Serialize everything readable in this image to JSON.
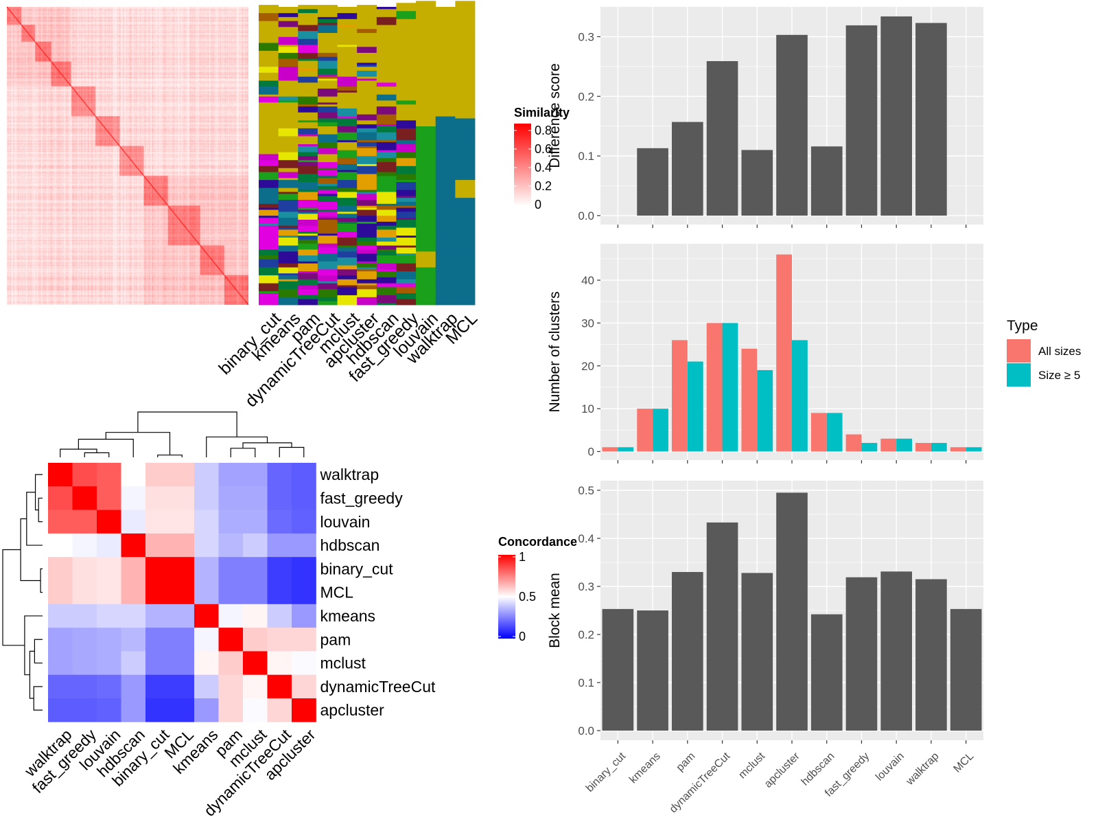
{
  "methods": [
    "binary_cut",
    "kmeans",
    "pam",
    "dynamicTreeCut",
    "mclust",
    "apcluster",
    "hdbscan",
    "fast_greedy",
    "louvain",
    "walktrap",
    "MCL"
  ],
  "chart_data": [
    {
      "id": "similarity_heatmap",
      "type": "heatmap",
      "legend": {
        "title": "Similarity",
        "ticks": [
          "0",
          "0.2",
          "0.4",
          "0.6",
          "0.8"
        ],
        "low_color": "#ffffff",
        "high_color": "#ff0000"
      },
      "n_items": 300
    },
    {
      "id": "cluster_assignment_heatmap",
      "type": "heatmap",
      "columns": [
        "binary_cut",
        "kmeans",
        "pam",
        "dynamicTreeCut",
        "mclust",
        "apcluster",
        "hdbscan",
        "fast_greedy",
        "louvain",
        "walktrap",
        "MCL"
      ],
      "background_color": "#c5ae00",
      "palette": [
        "#2e0a99",
        "#1aa01a",
        "#e000e0",
        "#1a8fa0",
        "#a65d00",
        "#7a1f1f",
        "#0d6e8c",
        "#c800c8",
        "#2a7a00",
        "#e39e00",
        "#1f3fa0",
        "#007a3a",
        "#7b0a7b",
        "#e6e600"
      ]
    },
    {
      "id": "concordance_heatmap",
      "type": "heatmap",
      "rows": [
        "walktrap",
        "fast_greedy",
        "louvain",
        "hdbscan",
        "binary_cut",
        "MCL",
        "kmeans",
        "pam",
        "mclust",
        "dynamicTreeCut",
        "apcluster"
      ],
      "columns": [
        "walktrap",
        "fast_greedy",
        "louvain",
        "hdbscan",
        "binary_cut",
        "MCL",
        "kmeans",
        "pam",
        "mclust",
        "dynamicTreeCut",
        "apcluster"
      ],
      "values": [
        [
          1.0,
          0.85,
          0.82,
          0.5,
          0.6,
          0.6,
          0.4,
          0.32,
          0.32,
          0.2,
          0.18
        ],
        [
          0.85,
          1.0,
          0.82,
          0.48,
          0.56,
          0.56,
          0.4,
          0.33,
          0.33,
          0.2,
          0.18
        ],
        [
          0.82,
          0.82,
          1.0,
          0.46,
          0.55,
          0.55,
          0.42,
          0.34,
          0.34,
          0.21,
          0.19
        ],
        [
          0.5,
          0.48,
          0.46,
          1.0,
          0.65,
          0.65,
          0.42,
          0.36,
          0.4,
          0.3,
          0.3
        ],
        [
          0.6,
          0.56,
          0.55,
          0.65,
          1.0,
          1.0,
          0.35,
          0.25,
          0.25,
          0.12,
          0.1
        ],
        [
          0.6,
          0.56,
          0.55,
          0.65,
          1.0,
          1.0,
          0.35,
          0.25,
          0.25,
          0.12,
          0.1
        ],
        [
          0.4,
          0.4,
          0.42,
          0.42,
          0.35,
          0.35,
          1.0,
          0.48,
          0.52,
          0.4,
          0.3
        ],
        [
          0.32,
          0.33,
          0.34,
          0.36,
          0.25,
          0.25,
          0.48,
          1.0,
          0.6,
          0.58,
          0.58
        ],
        [
          0.32,
          0.33,
          0.34,
          0.4,
          0.25,
          0.25,
          0.52,
          0.6,
          1.0,
          0.52,
          0.49
        ],
        [
          0.2,
          0.2,
          0.21,
          0.3,
          0.12,
          0.12,
          0.4,
          0.58,
          0.52,
          1.0,
          0.58
        ],
        [
          0.18,
          0.18,
          0.19,
          0.3,
          0.1,
          0.1,
          0.3,
          0.58,
          0.49,
          0.58,
          1.0
        ]
      ],
      "legend": {
        "title": "Concordance",
        "ticks": [
          "0",
          "0.5",
          "1"
        ],
        "low_color": "#0000ff",
        "mid_color": "#ffffff",
        "high_color": "#ff0000"
      }
    },
    {
      "id": "difference_score",
      "type": "bar",
      "categories": [
        "binary_cut",
        "kmeans",
        "pam",
        "dynamicTreeCut",
        "mclust",
        "apcluster",
        "hdbscan",
        "fast_greedy",
        "louvain",
        "walktrap",
        "MCL"
      ],
      "values": [
        0,
        0.113,
        0.157,
        0.259,
        0.11,
        0.303,
        0.116,
        0.319,
        0.334,
        0.323,
        0
      ],
      "ylabel": "Difference score",
      "ylim": [
        -0.015,
        0.35
      ],
      "yticks": [
        0.0,
        0.1,
        0.2,
        0.3
      ],
      "yticklabels": [
        "0.0",
        "0.1",
        "0.2",
        "0.3"
      ],
      "bar_color": "#595959",
      "grid": true
    },
    {
      "id": "number_of_clusters",
      "type": "bar",
      "categories": [
        "binary_cut",
        "kmeans",
        "pam",
        "dynamicTreeCut",
        "mclust",
        "apcluster",
        "hdbscan",
        "fast_greedy",
        "louvain",
        "walktrap",
        "MCL"
      ],
      "series": [
        {
          "name": "All sizes",
          "color": "#f8766d",
          "values": [
            1,
            10,
            26,
            30,
            24,
            46,
            9,
            4,
            3,
            2,
            1
          ]
        },
        {
          "name": "Size ≥ 5",
          "color": "#00bfc4",
          "values": [
            1,
            10,
            21,
            30,
            19,
            26,
            9,
            2,
            3,
            2,
            1
          ]
        }
      ],
      "ylabel": "Number of clusters",
      "ylim": [
        -2,
        48.5
      ],
      "yticks": [
        0,
        10,
        20,
        30,
        40
      ],
      "yticklabels": [
        "0",
        "10",
        "20",
        "30",
        "40"
      ],
      "legend": {
        "title": "Type",
        "position": "right"
      },
      "grid": true
    },
    {
      "id": "block_mean",
      "type": "bar",
      "categories": [
        "binary_cut",
        "kmeans",
        "pam",
        "dynamicTreeCut",
        "mclust",
        "apcluster",
        "hdbscan",
        "fast_greedy",
        "louvain",
        "walktrap",
        "MCL"
      ],
      "values": [
        0.253,
        0.25,
        0.33,
        0.433,
        0.328,
        0.495,
        0.242,
        0.319,
        0.331,
        0.315,
        0.253
      ],
      "ylabel": "Block mean",
      "ylim": [
        -0.02,
        0.52
      ],
      "yticks": [
        0.0,
        0.1,
        0.2,
        0.3,
        0.4,
        0.5
      ],
      "yticklabels": [
        "0.0",
        "0.1",
        "0.2",
        "0.3",
        "0.4",
        "0.5"
      ],
      "bar_color": "#595959",
      "grid": true
    }
  ]
}
